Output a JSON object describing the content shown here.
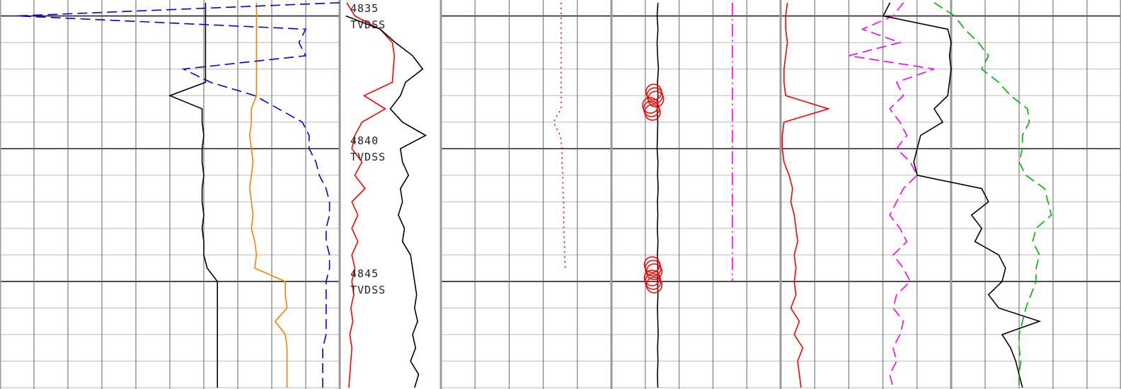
{
  "chart_data": [
    {
      "type": "line",
      "ylim": [
        4834.4,
        4849.05
      ],
      "ygrid": [
        4835,
        4836,
        4837,
        4838,
        4839,
        4840,
        4841,
        4842,
        4843,
        4844,
        4845,
        4846,
        4847,
        4848,
        4849
      ],
      "xlim": [
        0,
        100
      ],
      "xticks": [
        0,
        10,
        20,
        30,
        40,
        50,
        60,
        70,
        80,
        90,
        100
      ],
      "grid": true,
      "x": [
        4834.5,
        4835,
        4835.5,
        4836,
        4836.5,
        4837,
        4837.5,
        4838,
        4838.5,
        4839,
        4839.5,
        4840,
        4840.5,
        4841,
        4841.5,
        4842,
        4842.5,
        4843,
        4843.5,
        4844,
        4844.5,
        4845,
        4845.5,
        4846,
        4846.5,
        4847,
        4847.5,
        4848,
        4848.5,
        4849
      ],
      "series": [
        {
          "color": "#000000",
          "style": "solid",
          "values": [
            60.5,
            60.5,
            60.5,
            60.5,
            60.5,
            60.5,
            60.5,
            50,
            59.5,
            59.5,
            60,
            59.5,
            59.5,
            60,
            59.5,
            59.5,
            60,
            59.5,
            60,
            60,
            61,
            64,
            64,
            64,
            64,
            64,
            64,
            64,
            64,
            64
          ]
        },
        {
          "color": "#ff8000",
          "style": "solid",
          "values": [
            75.5,
            75.5,
            75.5,
            75.5,
            75.5,
            75.5,
            75.5,
            75.5,
            74,
            74,
            73.5,
            74,
            74.5,
            74,
            73.5,
            74,
            74.5,
            74,
            75,
            75.5,
            75,
            84,
            84,
            84.5,
            81,
            84,
            84.5,
            84.5,
            84.5,
            84.5
          ]
        },
        {
          "color": "#0000dd",
          "style": "dashed",
          "values": [
            100,
            5,
            90,
            88,
            90,
            54,
            62,
            75,
            82,
            89,
            91,
            91,
            93,
            94,
            96,
            97,
            97,
            96,
            96,
            97,
            97,
            96,
            96,
            96,
            96,
            96,
            95,
            95,
            95,
            95
          ]
        }
      ]
    },
    {
      "type": "depth",
      "ylim": [
        4834.4,
        4849.05
      ],
      "yticks": [
        {
          "value": 4835,
          "label": "4835 TVDSS"
        },
        {
          "value": 4840,
          "label": "4840 TVDSS"
        },
        {
          "value": 4845,
          "label": "4845 TVDSS"
        }
      ],
      "xlim": [
        0,
        100
      ],
      "x": [
        4834.5,
        4835,
        4835.5,
        4836,
        4836.5,
        4837,
        4837.5,
        4838,
        4838.5,
        4839,
        4839.5,
        4840,
        4840.5,
        4841,
        4841.5,
        4842,
        4842.5,
        4843,
        4843.5,
        4844,
        4844.5,
        4845,
        4845.5,
        4846,
        4846.5,
        4847,
        4847.5,
        4848,
        4848.5,
        4849
      ],
      "series": [
        {
          "color": "#ff0000",
          "style": "solid",
          "values": [
            7,
            15,
            40,
            52,
            54,
            53,
            52,
            24,
            45,
            22,
            15,
            12,
            22,
            15,
            25,
            12,
            18,
            12,
            18,
            12,
            15,
            12,
            14,
            11,
            13,
            10,
            12,
            11,
            10,
            9
          ]
        },
        {
          "color": "#000000",
          "style": "solid",
          "values": [
            null,
            6,
            40,
            55,
            72,
            82,
            65,
            60,
            50,
            62,
            85,
            60,
            62,
            68,
            60,
            62,
            58,
            64,
            62,
            70,
            72,
            74,
            76,
            74,
            77,
            72,
            75,
            70,
            78,
            74
          ]
        }
      ]
    },
    {
      "type": "line",
      "ylim": [
        4834.4,
        4849.05
      ],
      "ygrid": [
        4835,
        4836,
        4837,
        4838,
        4839,
        4840,
        4841,
        4842,
        4843,
        4844,
        4845,
        4846,
        4847,
        4848,
        4849
      ],
      "xlim": [
        0,
        100
      ],
      "xticks": [
        0,
        20,
        40,
        60,
        80,
        100
      ],
      "grid": true,
      "x": [
        4834.5,
        4835,
        4835.5,
        4836,
        4836.5,
        4837,
        4837.5,
        4838,
        4838.5,
        4839,
        4839.5,
        4840,
        4840.5,
        4841,
        4841.5,
        4842,
        4842.5,
        4843,
        4843.5,
        4844,
        4844.5,
        4845,
        4845.5,
        4846,
        4846.5,
        4847,
        4847.5,
        4848,
        4848.5,
        4849
      ],
      "series": [
        {
          "color": "#ff0000",
          "style": "dotted",
          "values": [
            70.5,
            70.5,
            70.5,
            70.5,
            70.5,
            70.5,
            70.5,
            70.5,
            70.5,
            66,
            70,
            71,
            71,
            71.5,
            71.5,
            72,
            72,
            72,
            72.5,
            72.5,
            73,
            null,
            null,
            null,
            null,
            null,
            null,
            null,
            null,
            null
          ]
        }
      ]
    },
    {
      "type": "line",
      "ylim": [
        4834.4,
        4849.05
      ],
      "ygrid": [
        4835,
        4836,
        4837,
        4838,
        4839,
        4840,
        4841,
        4842,
        4843,
        4844,
        4845,
        4846,
        4847,
        4848,
        4849
      ],
      "xlim": [
        0,
        100
      ],
      "xticks": [
        0,
        20,
        40,
        60,
        80,
        100
      ],
      "grid": true,
      "x": [
        4834.5,
        4835,
        4835.5,
        4836,
        4836.5,
        4837,
        4837.5,
        4838,
        4838.5,
        4839,
        4839.5,
        4840,
        4840.5,
        4841,
        4841.5,
        4842,
        4842.5,
        4843,
        4843.5,
        4844,
        4844.5,
        4845,
        4845.5,
        4846,
        4846.5,
        4847,
        4847.5,
        4848,
        4848.5,
        4849
      ],
      "series": [
        {
          "color": "#000000",
          "style": "solid",
          "values": [
            27.5,
            27,
            27.5,
            27,
            27.3,
            27.8,
            27.2,
            27.5,
            27,
            27.4,
            27.2,
            27,
            27.5,
            27.3,
            27.6,
            27.2,
            27.4,
            27.1,
            27.5,
            27.2,
            27.4,
            27.3,
            27.5,
            27.2,
            27.4,
            27.6,
            27.3,
            27.5,
            27.2,
            27.4
          ]
        },
        {
          "color": "#ff0000",
          "style": "circles",
          "values": [
            null,
            null,
            null,
            null,
            null,
            null,
            null,
            25,
            23,
            null,
            null,
            null,
            null,
            null,
            null,
            null,
            null,
            null,
            null,
            null,
            24,
            24,
            null,
            null,
            null,
            null,
            null,
            null,
            null,
            null
          ]
        },
        {
          "color": "#ff00ff",
          "style": "dashdot",
          "values": [
            71.5,
            71.5,
            71.5,
            71.5,
            71.5,
            71.5,
            71.5,
            71.5,
            71.5,
            71.5,
            71.5,
            71.5,
            71.5,
            71.5,
            71.5,
            71.5,
            71.5,
            71.5,
            71.5,
            71.5,
            71.5,
            71.5,
            null,
            null,
            null,
            null,
            null,
            null,
            null,
            null
          ]
        }
      ]
    },
    {
      "type": "line",
      "ylim": [
        4834.4,
        4849.05
      ],
      "ygrid": [
        4835,
        4836,
        4837,
        4838,
        4839,
        4840,
        4841,
        4842,
        4843,
        4844,
        4845,
        4846,
        4847,
        4848,
        4849
      ],
      "xlim": [
        0,
        100
      ],
      "xticks": [
        0,
        20,
        40,
        60,
        80,
        100
      ],
      "grid": true,
      "x": [
        4834.5,
        4835,
        4835.5,
        4836,
        4836.5,
        4837,
        4837.5,
        4838,
        4838.5,
        4839,
        4839.5,
        4840,
        4840.5,
        4841,
        4841.5,
        4842,
        4842.5,
        4843,
        4843.5,
        4844,
        4844.5,
        4845,
        4845.5,
        4846,
        4846.5,
        4847,
        4847.5,
        4848,
        4848.5,
        4849
      ],
      "series": [
        {
          "color": "#ff0000",
          "style": "solid",
          "values": [
            4,
            3,
            3,
            4,
            3,
            2,
            2,
            3,
            28,
            2,
            1,
            1,
            2,
            5,
            7,
            6,
            8,
            9,
            10,
            8,
            9,
            8,
            9,
            6,
            11,
            8,
            13,
            10,
            11,
            12
          ]
        },
        {
          "color": "#ff00ff",
          "style": "dashed",
          "values": [
            72,
            66,
            48,
            70,
            40,
            90,
            68,
            72,
            64,
            70,
            74,
            68,
            76,
            80,
            72,
            68,
            64,
            70,
            74,
            66,
            72,
            76,
            68,
            66,
            72,
            70,
            66,
            68,
            64,
            66
          ]
        }
      ]
    },
    {
      "type": "line",
      "ylim": [
        4834.4,
        4849.05
      ],
      "ygrid": [
        4835,
        4836,
        4837,
        4838,
        4839,
        4840,
        4841,
        4842,
        4843,
        4844,
        4845,
        4846,
        4847,
        4848,
        4849
      ],
      "xlim": [
        0,
        100
      ],
      "xticks": [
        0,
        20,
        40,
        60,
        80,
        100
      ],
      "grid": true,
      "x": [
        4834.5,
        4835,
        4835.5,
        4836,
        4836.5,
        4837,
        4837.5,
        4838,
        4838.5,
        4839,
        4839.5,
        4840,
        4840.5,
        4841,
        4841.5,
        4842,
        4842.5,
        4843,
        4843.5,
        4844,
        4844.5,
        4845,
        4845.5,
        4846,
        4846.5,
        4847,
        4847.5,
        4848,
        4848.5,
        4849
      ],
      "series": [
        {
          "color": "#000000",
          "style": "solid",
          "values": [
            -36,
            -40,
            -2,
            0,
            -1,
            0,
            -1,
            -2,
            -10,
            -5,
            -18,
            -20,
            -22,
            -20,
            18,
            22,
            12,
            18,
            14,
            28,
            32,
            30,
            22,
            28,
            52,
            30,
            35,
            38,
            40,
            42
          ]
        },
        {
          "color": "#00b000",
          "style": "dashed",
          "values": [
            -10,
            2,
            8,
            16,
            22,
            18,
            28,
            35,
            45,
            46,
            42,
            42,
            40,
            44,
            55,
            57,
            59,
            50,
            48,
            52,
            50,
            50,
            47,
            44,
            42,
            40,
            40,
            41,
            40,
            40
          ]
        }
      ]
    }
  ]
}
